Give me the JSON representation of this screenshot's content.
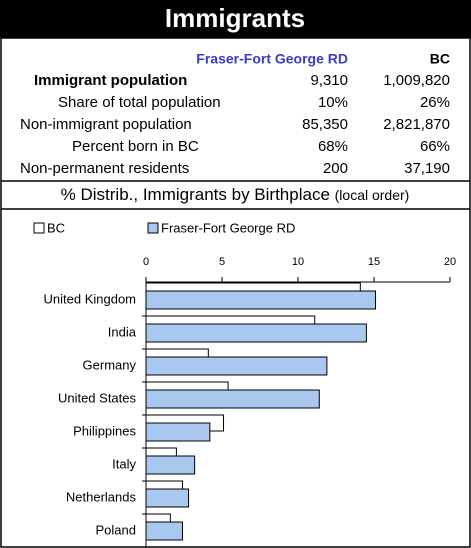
{
  "header": {
    "title": "Immigrants"
  },
  "table": {
    "columns": [
      "Fraser-Fort George RD",
      "BC"
    ],
    "rows": [
      {
        "label": "Immigrant population",
        "values": [
          "9,310",
          "1,009,820"
        ]
      },
      {
        "label": "Share of total population",
        "values": [
          "10%",
          "26%"
        ]
      },
      {
        "label": "Non-immigrant population",
        "values": [
          "85,350",
          "2,821,870"
        ]
      },
      {
        "label": "Percent born in BC",
        "values": [
          "68%",
          "66%"
        ]
      },
      {
        "label": "Non-permanent residents",
        "values": [
          "200",
          "37,190"
        ]
      }
    ]
  },
  "section": {
    "title": "% Distrib., Immigrants by Birthplace",
    "note": "(local order)"
  },
  "chart_data": {
    "type": "hbar",
    "categories": [
      "United Kingdom",
      "India",
      "Germany",
      "United States",
      "Philippines",
      "Italy",
      "Netherlands",
      "Poland"
    ],
    "series": [
      {
        "name": "BC",
        "color": "#ffffff",
        "values": [
          14.1,
          11.1,
          4.1,
          5.4,
          5.1,
          2.0,
          2.4,
          1.6
        ]
      },
      {
        "name": "Fraser-Fort George RD",
        "color": "#a9c8f0",
        "values": [
          15.1,
          14.5,
          11.9,
          11.4,
          4.2,
          3.2,
          2.8,
          2.4
        ]
      }
    ],
    "xlim": [
      0,
      20
    ],
    "xticks": [
      0,
      5,
      10,
      15,
      20
    ],
    "legend": "top"
  }
}
